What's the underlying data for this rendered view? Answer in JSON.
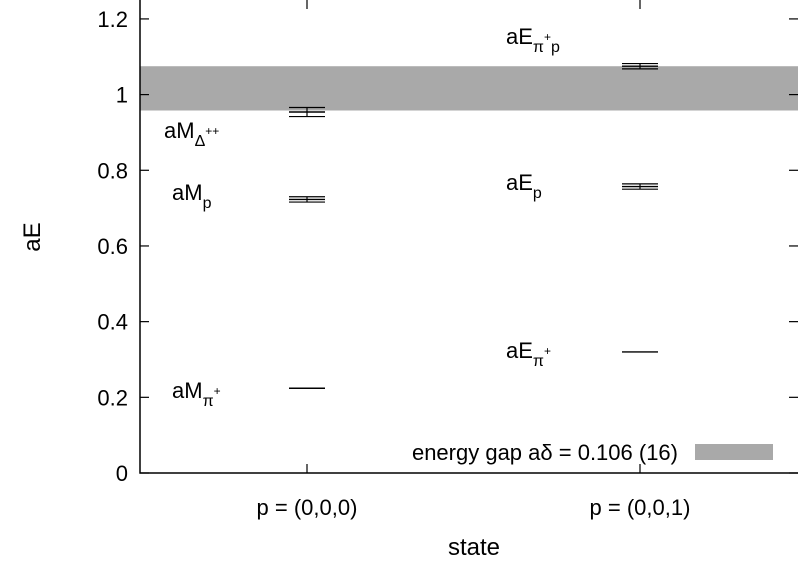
{
  "chart_data": {
    "type": "errorbar",
    "title": "",
    "xlabel": "state",
    "ylabel": "aE",
    "ylim": [
      0,
      1.25
    ],
    "yticks": [
      "0",
      "0.2",
      "0.4",
      "0.6",
      "0.8",
      "1",
      "1.2"
    ],
    "categories": [
      "p = (0,0,0)",
      "p = (0,0,1)"
    ],
    "points": [
      {
        "category": 0,
        "value": 0.224,
        "error": 0.0,
        "label": {
          "main": "aM",
          "sub": "π",
          "sup": "+",
          "tail": ""
        }
      },
      {
        "category": 0,
        "value": 0.723,
        "error": 0.007,
        "label": {
          "main": "aM",
          "sub": "p",
          "sup": "",
          "tail": ""
        }
      },
      {
        "category": 0,
        "value": 0.954,
        "error": 0.012,
        "label": {
          "main": "aM",
          "sub": "Δ",
          "sup": "++",
          "tail": ""
        }
      },
      {
        "category": 1,
        "value": 0.32,
        "error": 0.0,
        "label": {
          "main": "aE",
          "sub": "π",
          "sup": "+",
          "tail": ""
        }
      },
      {
        "category": 1,
        "value": 0.757,
        "error": 0.007,
        "label": {
          "main": "aE",
          "sub": "p",
          "sup": "",
          "tail": ""
        }
      },
      {
        "category": 1,
        "value": 1.075,
        "error": 0.007,
        "label": {
          "main": "aE",
          "sub": "π",
          "sup": "+",
          "tail": "p"
        }
      }
    ],
    "band": {
      "low": 0.958,
      "high": 1.075,
      "color": "#a9a9a9",
      "legend": "energy gap aδ = 0.106 (16)"
    },
    "legend_position": "bottom-right",
    "grid": false
  }
}
